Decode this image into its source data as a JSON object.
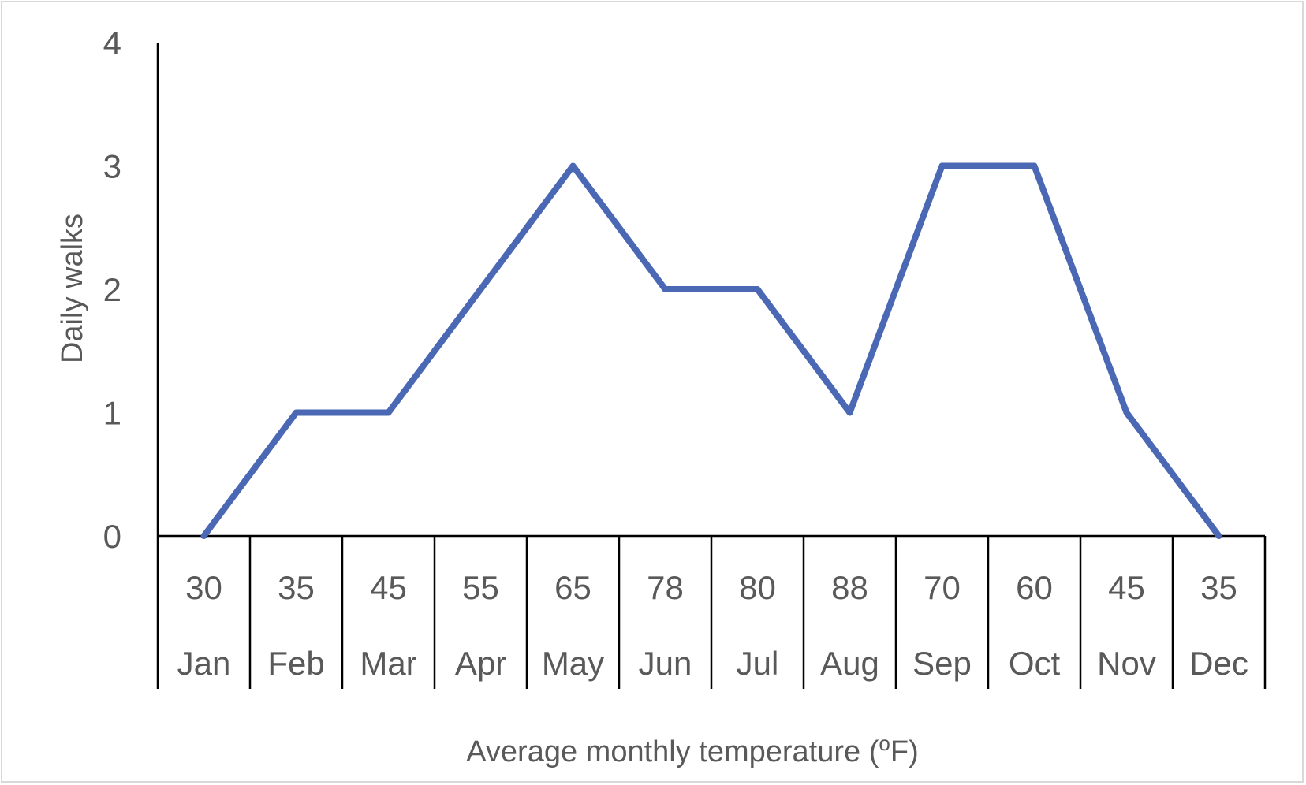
{
  "chart_data": {
    "type": "line",
    "categories": [
      "Jan",
      "Feb",
      "Mar",
      "Apr",
      "May",
      "Jun",
      "Jul",
      "Aug",
      "Sep",
      "Oct",
      "Nov",
      "Dec"
    ],
    "temperatures": [
      "30",
      "35",
      "45",
      "55",
      "65",
      "78",
      "80",
      "88",
      "70",
      "60",
      "45",
      "35"
    ],
    "series": [
      {
        "values": [
          0,
          1,
          1,
          2,
          3,
          2,
          2,
          1,
          3,
          3,
          1,
          0
        ]
      }
    ],
    "xlabel": "Average monthly temperature (oF)",
    "xlabel_main": "Average monthly temperature (",
    "xlabel_degree": "o",
    "xlabel_unit": "F)",
    "ylabel": "Daily walks",
    "ylim": [
      0,
      4
    ],
    "yticks": [
      "0",
      "1",
      "2",
      "3",
      "4"
    ],
    "grid": false,
    "line_color": "#4a68b3",
    "axis_color": "#000000",
    "text_color": "#595959"
  }
}
